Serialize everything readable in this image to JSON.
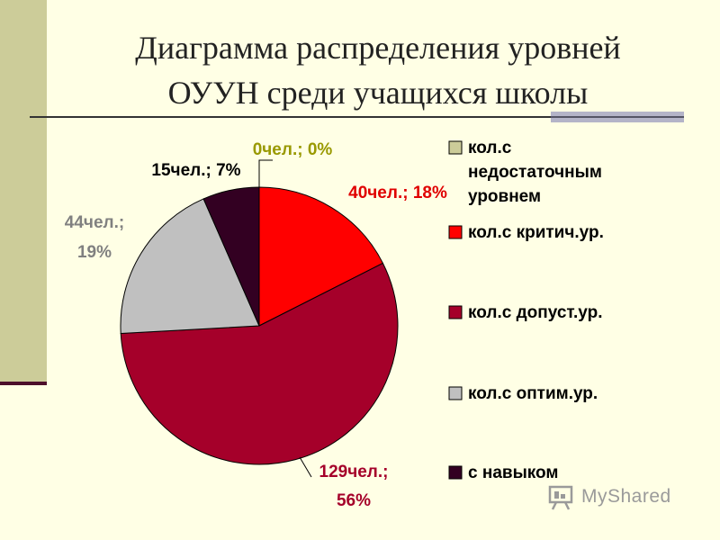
{
  "title": {
    "line1": "Диаграмма распределения уровней",
    "line2": "ОУУН среди учащихся школы"
  },
  "watermark": {
    "text": "MyShared"
  },
  "chart_data": {
    "type": "pie",
    "slices": [
      {
        "name": "кол.с недостаточным уровнем",
        "count": 0,
        "percent": 0,
        "label": "0чел.; 0%",
        "color": "#CCCC99",
        "label_color": "#999900"
      },
      {
        "name": "кол.с критич.ур.",
        "count": 40,
        "percent": 18,
        "label": "40чел.; 18%",
        "color": "#FF0000",
        "label_color": "#E00000"
      },
      {
        "name": "кол.с допуст.ур.",
        "count": 129,
        "percent": 56,
        "label_lines": [
          "129чел.;",
          "56%"
        ],
        "color": "#A5002A",
        "label_color": "#A5002A"
      },
      {
        "name": "кол.с оптим.ур.",
        "count": 44,
        "percent": 19,
        "label_lines": [
          "44чел.;",
          "19%"
        ],
        "color": "#C0C0C0",
        "label_color": "#808080"
      },
      {
        "name": "с навыком",
        "count": 15,
        "percent": 7,
        "label": "15чел.; 7%",
        "color": "#330022",
        "label_color": "#000000"
      }
    ],
    "legend": {
      "position": "right",
      "entries": [
        {
          "lines": [
            "кол.с",
            "недостаточным",
            "уровнем"
          ],
          "color": "#CCCC99"
        },
        {
          "lines": [
            "кол.с критич.ур."
          ],
          "color": "#FF0000"
        },
        {
          "lines": [
            "кол.с допуст.ур."
          ],
          "color": "#A5002A"
        },
        {
          "lines": [
            "кол.с оптим.ур."
          ],
          "color": "#C0C0C0"
        },
        {
          "lines": [
            "с навыком"
          ],
          "color": "#330022"
        }
      ]
    }
  }
}
